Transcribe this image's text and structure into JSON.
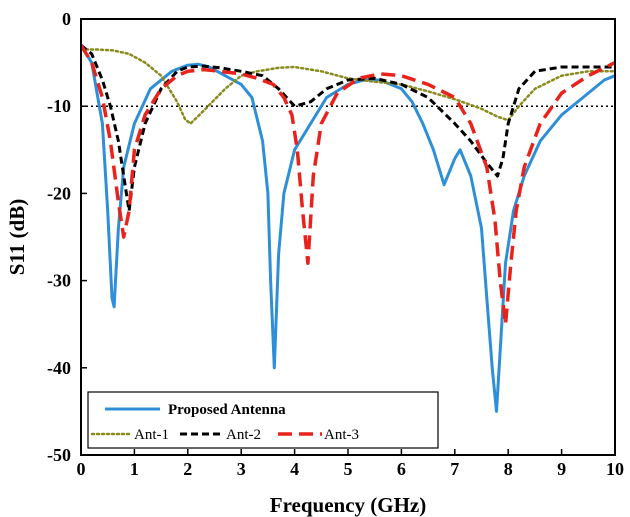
{
  "chart_data": {
    "type": "line",
    "xlabel": "Frequency (GHz)",
    "ylabel": "S11 (dB)",
    "xlim": [
      0,
      10
    ],
    "ylim": [
      -50,
      0
    ],
    "xticks": [
      0,
      1,
      2,
      3,
      4,
      5,
      6,
      7,
      8,
      9,
      10
    ],
    "yticks": [
      0,
      -10,
      -20,
      -30,
      -40,
      -50
    ],
    "grid": false,
    "legend_position": "bottom-left",
    "reference_line": {
      "y": -10,
      "style": "dotted",
      "color": "#000000"
    },
    "series": [
      {
        "name": "Proposed Antenna",
        "color": "#2e8fd8",
        "style": "solid",
        "x": [
          0,
          0.2,
          0.4,
          0.5,
          0.58,
          0.62,
          0.7,
          0.8,
          1.0,
          1.3,
          1.7,
          2.0,
          2.2,
          2.4,
          2.7,
          3.0,
          3.2,
          3.4,
          3.5,
          3.55,
          3.62,
          3.7,
          3.8,
          4.0,
          4.3,
          4.6,
          5.0,
          5.3,
          5.6,
          6.0,
          6.2,
          6.4,
          6.5,
          6.6,
          6.8,
          7.0,
          7.1,
          7.3,
          7.5,
          7.6,
          7.7,
          7.78,
          7.85,
          7.95,
          8.1,
          8.3,
          8.6,
          9.0,
          9.4,
          9.8,
          10.0
        ],
        "y": [
          -3,
          -5,
          -12,
          -22,
          -32,
          -33,
          -24,
          -17,
          -12,
          -8,
          -6,
          -5.3,
          -5.2,
          -5.5,
          -6.5,
          -7.5,
          -9,
          -14,
          -20,
          -30,
          -40,
          -27,
          -20,
          -15,
          -12,
          -9,
          -7.5,
          -7,
          -7,
          -8,
          -9.5,
          -12,
          -13.5,
          -15,
          -19,
          -16,
          -15,
          -18,
          -24,
          -32,
          -40,
          -45,
          -38,
          -28,
          -22,
          -18,
          -14,
          -11,
          -9,
          -7,
          -6.5
        ]
      },
      {
        "name": "Ant-1",
        "color": "#8a8a1e",
        "style": "dotted",
        "x": [
          0,
          0.3,
          0.6,
          0.9,
          1.2,
          1.5,
          1.8,
          1.95,
          2.05,
          2.3,
          2.7,
          3.0,
          3.3,
          3.7,
          4.0,
          4.5,
          5.0,
          5.5,
          6.0,
          6.5,
          7.0,
          7.5,
          7.8,
          8.0,
          8.2,
          8.5,
          9.0,
          9.5,
          10.0
        ],
        "y": [
          -3.5,
          -3.5,
          -3.6,
          -4,
          -5,
          -6.5,
          -9.5,
          -11.5,
          -12,
          -10.5,
          -8,
          -6.5,
          -6,
          -5.6,
          -5.5,
          -6,
          -6.8,
          -7.2,
          -7.5,
          -8.3,
          -9.2,
          -10.3,
          -11.2,
          -11.6,
          -10,
          -8,
          -6.5,
          -6,
          -6
        ]
      },
      {
        "name": "Ant-2",
        "color": "#000000",
        "style": "dashed",
        "x": [
          0,
          0.2,
          0.4,
          0.55,
          0.7,
          0.8,
          0.9,
          1.0,
          1.2,
          1.5,
          1.8,
          2.0,
          2.3,
          2.6,
          3.0,
          3.4,
          3.7,
          4.0,
          4.3,
          4.6,
          5.0,
          5.5,
          6.0,
          6.5,
          7.0,
          7.3,
          7.6,
          7.8,
          7.9,
          8.0,
          8.2,
          8.5,
          9.0,
          9.5,
          10.0
        ],
        "y": [
          -3,
          -4,
          -7,
          -10,
          -14,
          -18,
          -22,
          -17,
          -12,
          -8,
          -6,
          -5.5,
          -5.4,
          -5.6,
          -6,
          -6.5,
          -8,
          -10,
          -9.5,
          -8,
          -7,
          -6.8,
          -7.5,
          -9,
          -12,
          -14,
          -16.5,
          -18,
          -16,
          -12,
          -8,
          -6,
          -5.5,
          -5.5,
          -5.5
        ]
      },
      {
        "name": "Ant-3",
        "color": "#e8231b",
        "style": "dashed",
        "x": [
          0,
          0.2,
          0.4,
          0.55,
          0.7,
          0.8,
          0.9,
          1.0,
          1.2,
          1.5,
          1.8,
          2.0,
          2.3,
          2.6,
          3.0,
          3.3,
          3.6,
          3.8,
          3.95,
          4.05,
          4.15,
          4.25,
          4.35,
          4.5,
          4.8,
          5.2,
          5.6,
          6.0,
          6.5,
          7.0,
          7.3,
          7.6,
          7.75,
          7.85,
          7.95,
          8.05,
          8.15,
          8.3,
          8.6,
          9.0,
          9.5,
          10.0
        ],
        "y": [
          -3,
          -5,
          -9,
          -14,
          -21,
          -25,
          -22,
          -15,
          -11,
          -8,
          -6.5,
          -6,
          -5.8,
          -6,
          -6.3,
          -6.8,
          -7.5,
          -9,
          -11,
          -15,
          -22,
          -28,
          -18,
          -12,
          -8.5,
          -6.8,
          -6.3,
          -6.5,
          -7.5,
          -9,
          -12,
          -17,
          -23,
          -30,
          -35,
          -28,
          -22,
          -17,
          -12,
          -8.5,
          -6.5,
          -5
        ]
      }
    ],
    "legend": [
      {
        "series": "Proposed Antenna",
        "row": 1
      },
      {
        "series": "Ant-1",
        "row": 2
      },
      {
        "series": "Ant-2",
        "row": 2
      },
      {
        "series": "Ant-3",
        "row": 2
      }
    ]
  }
}
